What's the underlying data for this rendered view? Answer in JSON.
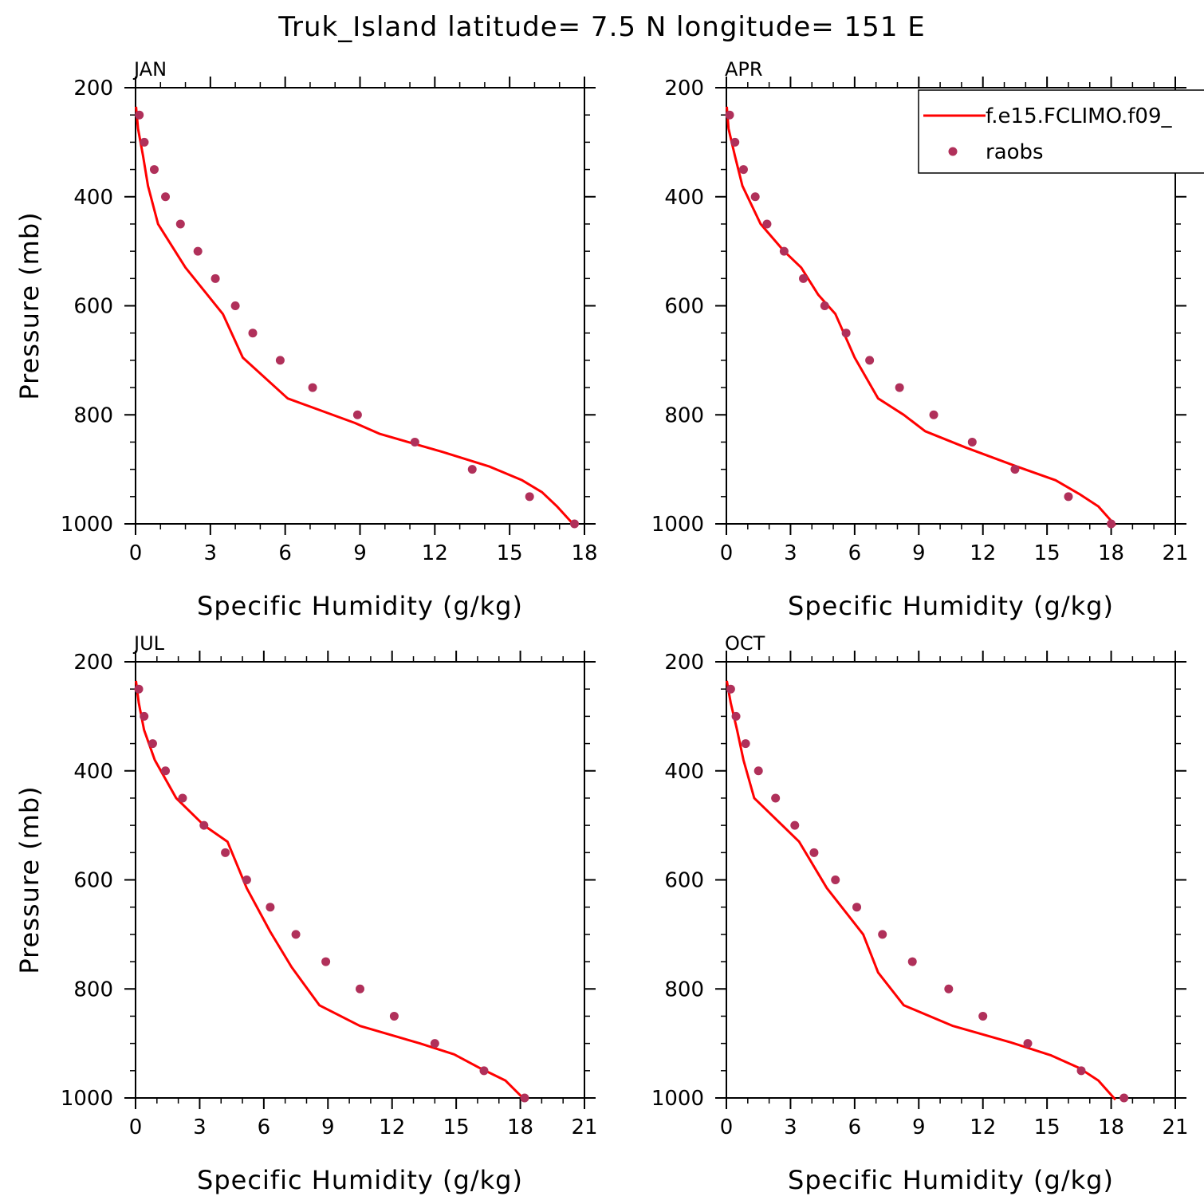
{
  "figure": {
    "title": "Truk_Island  latitude= 7.5 N longitude= 151 E"
  },
  "legend": {
    "model_label": "f.e15.FCLIMO.f09_",
    "obs_label": "raobs",
    "placement": "top-right of APR panel"
  },
  "colors": {
    "model_line": "#ff0000",
    "obs_marker": "#b0305a",
    "axes": "#000000"
  },
  "chart_data": [
    {
      "type": "line",
      "panel": "JAN",
      "xlabel": "Specific Humidity (g/kg)",
      "ylabel": "Pressure (mb)",
      "xlim": [
        0,
        18
      ],
      "ylim": [
        1000,
        200
      ],
      "x_ticks": [
        0,
        3,
        6,
        9,
        12,
        15,
        18
      ],
      "y_ticks": [
        200,
        400,
        600,
        800,
        1000
      ],
      "series": [
        {
          "style": "line",
          "values": [
            [
              0.02,
              235
            ],
            [
              0.1,
              275
            ],
            [
              0.3,
              325
            ],
            [
              0.5,
              380
            ],
            [
              0.9,
              450
            ],
            [
              2.0,
              530
            ],
            [
              3.5,
              615
            ],
            [
              4.3,
              695
            ],
            [
              6.1,
              770
            ],
            [
              8.8,
              815
            ],
            [
              9.8,
              835
            ],
            [
              12.3,
              868
            ],
            [
              14.2,
              895
            ],
            [
              15.5,
              920
            ],
            [
              16.3,
              942
            ],
            [
              16.9,
              968
            ],
            [
              17.6,
              1003
            ]
          ]
        },
        {
          "style": "scatter",
          "values": [
            [
              0.15,
              250
            ],
            [
              0.35,
              300
            ],
            [
              0.75,
              350
            ],
            [
              1.2,
              400
            ],
            [
              1.8,
              450
            ],
            [
              2.5,
              500
            ],
            [
              3.2,
              550
            ],
            [
              4.0,
              600
            ],
            [
              4.7,
              650
            ],
            [
              5.8,
              700
            ],
            [
              7.1,
              750
            ],
            [
              8.9,
              800
            ],
            [
              11.2,
              850
            ],
            [
              13.5,
              900
            ],
            [
              15.8,
              950
            ],
            [
              17.6,
              1000
            ]
          ]
        }
      ]
    },
    {
      "type": "line",
      "panel": "APR",
      "xlabel": "Specific Humidity (g/kg)",
      "ylabel": "",
      "xlim": [
        0,
        21
      ],
      "ylim": [
        1000,
        200
      ],
      "x_ticks": [
        0,
        3,
        6,
        9,
        12,
        15,
        18,
        21
      ],
      "y_ticks": [
        200,
        400,
        600,
        800,
        1000
      ],
      "series": [
        {
          "style": "line",
          "values": [
            [
              0.02,
              235
            ],
            [
              0.1,
              275
            ],
            [
              0.4,
              325
            ],
            [
              0.75,
              380
            ],
            [
              1.6,
              450
            ],
            [
              2.7,
              500
            ],
            [
              3.5,
              530
            ],
            [
              4.3,
              580
            ],
            [
              5.1,
              615
            ],
            [
              6.0,
              695
            ],
            [
              7.1,
              770
            ],
            [
              8.3,
              800
            ],
            [
              9.3,
              830
            ],
            [
              11.2,
              860
            ],
            [
              13.6,
              895
            ],
            [
              15.4,
              920
            ],
            [
              16.5,
              945
            ],
            [
              17.4,
              968
            ],
            [
              18.2,
              1003
            ]
          ]
        },
        {
          "style": "scatter",
          "values": [
            [
              0.15,
              250
            ],
            [
              0.4,
              300
            ],
            [
              0.8,
              350
            ],
            [
              1.35,
              400
            ],
            [
              1.9,
              450
            ],
            [
              2.7,
              500
            ],
            [
              3.6,
              550
            ],
            [
              4.6,
              600
            ],
            [
              5.6,
              650
            ],
            [
              6.7,
              700
            ],
            [
              8.1,
              750
            ],
            [
              9.7,
              800
            ],
            [
              11.5,
              850
            ],
            [
              13.5,
              900
            ],
            [
              16.0,
              950
            ],
            [
              18.0,
              1000
            ]
          ]
        }
      ]
    },
    {
      "type": "line",
      "panel": "JUL",
      "xlabel": "Specific Humidity (g/kg)",
      "ylabel": "Pressure (mb)",
      "xlim": [
        0,
        21
      ],
      "ylim": [
        1000,
        200
      ],
      "x_ticks": [
        0,
        3,
        6,
        9,
        12,
        15,
        18,
        21
      ],
      "y_ticks": [
        200,
        400,
        600,
        800,
        1000
      ],
      "series": [
        {
          "style": "line",
          "values": [
            [
              0.02,
              235
            ],
            [
              0.15,
              275
            ],
            [
              0.4,
              325
            ],
            [
              0.9,
              380
            ],
            [
              1.9,
              450
            ],
            [
              3.2,
              500
            ],
            [
              4.3,
              530
            ],
            [
              5.2,
              615
            ],
            [
              6.3,
              695
            ],
            [
              7.3,
              760
            ],
            [
              8.6,
              830
            ],
            [
              10.5,
              868
            ],
            [
              13.3,
              900
            ],
            [
              14.9,
              920
            ],
            [
              16.1,
              945
            ],
            [
              17.3,
              968
            ],
            [
              18.2,
              1003
            ]
          ]
        },
        {
          "style": "scatter",
          "values": [
            [
              0.15,
              250
            ],
            [
              0.4,
              300
            ],
            [
              0.8,
              350
            ],
            [
              1.4,
              400
            ],
            [
              2.2,
              450
            ],
            [
              3.2,
              500
            ],
            [
              4.2,
              550
            ],
            [
              5.2,
              600
            ],
            [
              6.3,
              650
            ],
            [
              7.5,
              700
            ],
            [
              8.9,
              750
            ],
            [
              10.5,
              800
            ],
            [
              12.1,
              850
            ],
            [
              14.0,
              900
            ],
            [
              16.3,
              950
            ],
            [
              18.2,
              1000
            ]
          ]
        }
      ]
    },
    {
      "type": "line",
      "panel": "OCT",
      "xlabel": "Specific Humidity (g/kg)",
      "ylabel": "",
      "xlim": [
        0,
        21
      ],
      "ylim": [
        1000,
        200
      ],
      "x_ticks": [
        0,
        3,
        6,
        9,
        12,
        15,
        18,
        21
      ],
      "y_ticks": [
        200,
        400,
        600,
        800,
        1000
      ],
      "series": [
        {
          "style": "line",
          "values": [
            [
              0.02,
              235
            ],
            [
              0.2,
              275
            ],
            [
              0.5,
              325
            ],
            [
              0.8,
              380
            ],
            [
              1.3,
              450
            ],
            [
              3.4,
              530
            ],
            [
              4.7,
              615
            ],
            [
              6.4,
              700
            ],
            [
              7.1,
              770
            ],
            [
              8.3,
              830
            ],
            [
              10.6,
              868
            ],
            [
              13.3,
              898
            ],
            [
              15.2,
              922
            ],
            [
              16.5,
              945
            ],
            [
              17.4,
              968
            ],
            [
              18.2,
              1003
            ]
          ]
        },
        {
          "style": "scatter",
          "values": [
            [
              0.2,
              250
            ],
            [
              0.45,
              300
            ],
            [
              0.9,
              350
            ],
            [
              1.5,
              400
            ],
            [
              2.3,
              450
            ],
            [
              3.2,
              500
            ],
            [
              4.1,
              550
            ],
            [
              5.1,
              600
            ],
            [
              6.1,
              650
            ],
            [
              7.3,
              700
            ],
            [
              8.7,
              750
            ],
            [
              10.4,
              800
            ],
            [
              12.0,
              850
            ],
            [
              14.1,
              900
            ],
            [
              16.6,
              950
            ],
            [
              18.6,
              1000
            ]
          ]
        }
      ]
    }
  ]
}
